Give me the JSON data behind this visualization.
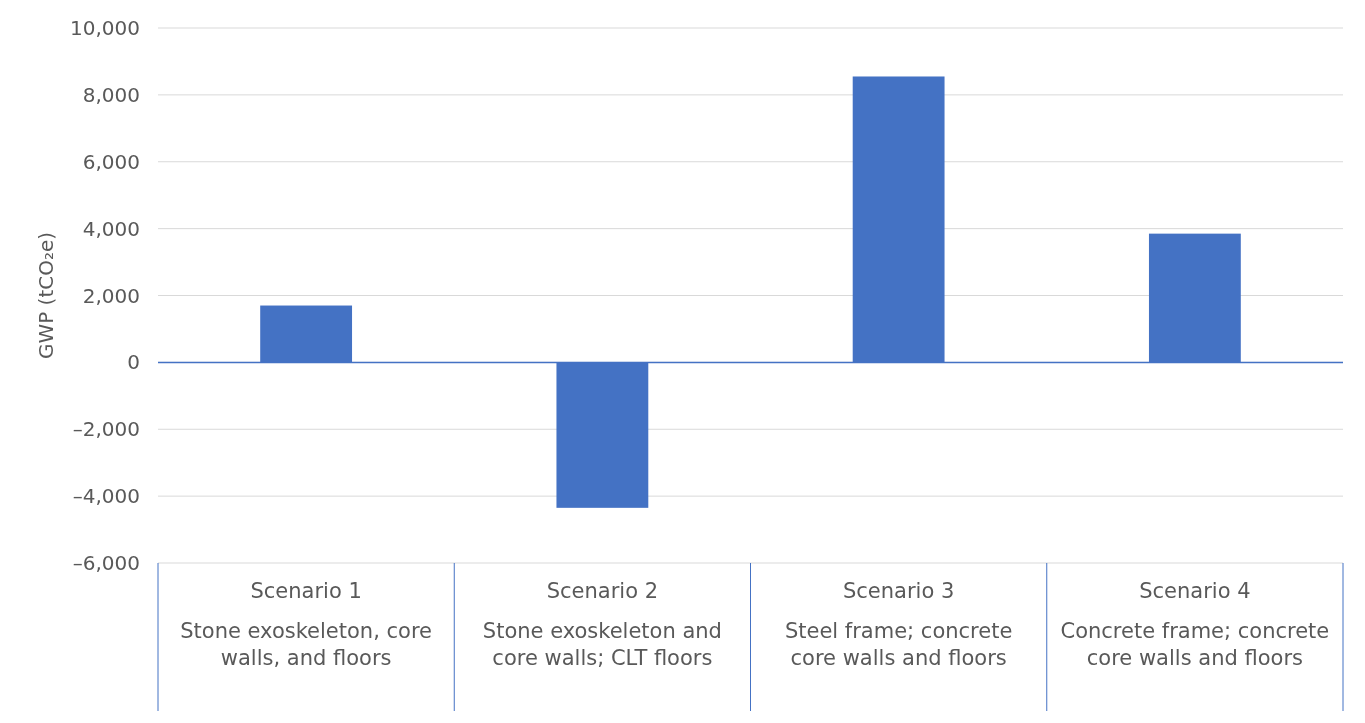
{
  "chart_data": {
    "type": "bar",
    "ylabel": "GWP (tCO₂e)",
    "categories": [
      "Scenario 1\nStone exoskeleton, core walls, and floors",
      "Scenario 2\nStone exoskeleton and core walls; CLT floors",
      "Scenario 3\nSteel frame; concrete core walls and floors",
      "Scenario 4\nConcrete frame; concrete core walls and floors"
    ],
    "values": [
      1700,
      -4350,
      8550,
      3850
    ],
    "color": "#4472c4",
    "ylim": [
      -6000,
      10000
    ],
    "yticks": [
      {
        "value": -6000,
        "label": "–6,000"
      },
      {
        "value": -4000,
        "label": "–4,000"
      },
      {
        "value": -2000,
        "label": "–2,000"
      },
      {
        "value": 0,
        "label": "0"
      },
      {
        "value": 2000,
        "label": "2,000"
      },
      {
        "value": 4000,
        "label": "4,000"
      },
      {
        "value": 6000,
        "label": "6,000"
      },
      {
        "value": 8000,
        "label": "8,000"
      },
      {
        "value": 10000,
        "label": "10,000"
      }
    ],
    "ref_lines": [
      {
        "axis": "y",
        "value": 0,
        "color": "#4472c4"
      }
    ],
    "grid": "y"
  }
}
